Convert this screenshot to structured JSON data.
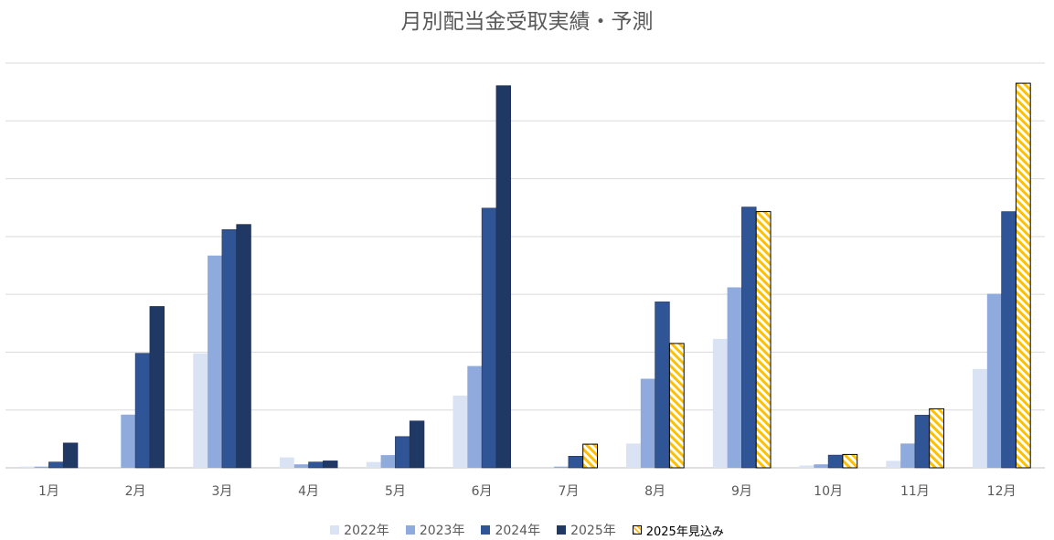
{
  "chart_data": {
    "type": "bar",
    "title": "月別配当金受取実績・予測",
    "categories": [
      "1月",
      "2月",
      "3月",
      "4月",
      "5月",
      "6月",
      "7月",
      "8月",
      "9月",
      "10月",
      "11月",
      "12月"
    ],
    "ylim": [
      0,
      7.0
    ],
    "grid": true,
    "legend_position": "bottom",
    "series": [
      {
        "name": "2022年",
        "color": "#dae3f3",
        "pattern": "solid",
        "values": [
          0.02,
          0,
          1.98,
          0.18,
          0.1,
          1.25,
          0,
          0.42,
          2.23,
          0.04,
          0.12,
          1.71
        ]
      },
      {
        "name": "2023年",
        "color": "#8faadc",
        "pattern": "solid",
        "values": [
          0.02,
          0.92,
          3.67,
          0.06,
          0.22,
          1.76,
          0.02,
          1.54,
          3.12,
          0.06,
          0.42,
          3.01
        ]
      },
      {
        "name": "2024年",
        "color": "#2f5597",
        "pattern": "solid",
        "values": [
          0.1,
          1.98,
          4.12,
          0.1,
          0.54,
          4.49,
          0.2,
          2.87,
          4.51,
          0.22,
          0.91,
          4.43
        ]
      },
      {
        "name": "2025年",
        "color": "#203864",
        "pattern": "solid",
        "values": [
          0.43,
          2.79,
          4.21,
          0.12,
          0.81,
          6.61,
          null,
          null,
          null,
          null,
          null,
          null
        ]
      },
      {
        "name": "2025年見込み",
        "color": "#ffc000",
        "pattern": "hatched",
        "values": [
          null,
          null,
          null,
          null,
          null,
          null,
          0.41,
          2.15,
          4.43,
          0.23,
          1.02,
          6.65
        ]
      }
    ]
  }
}
